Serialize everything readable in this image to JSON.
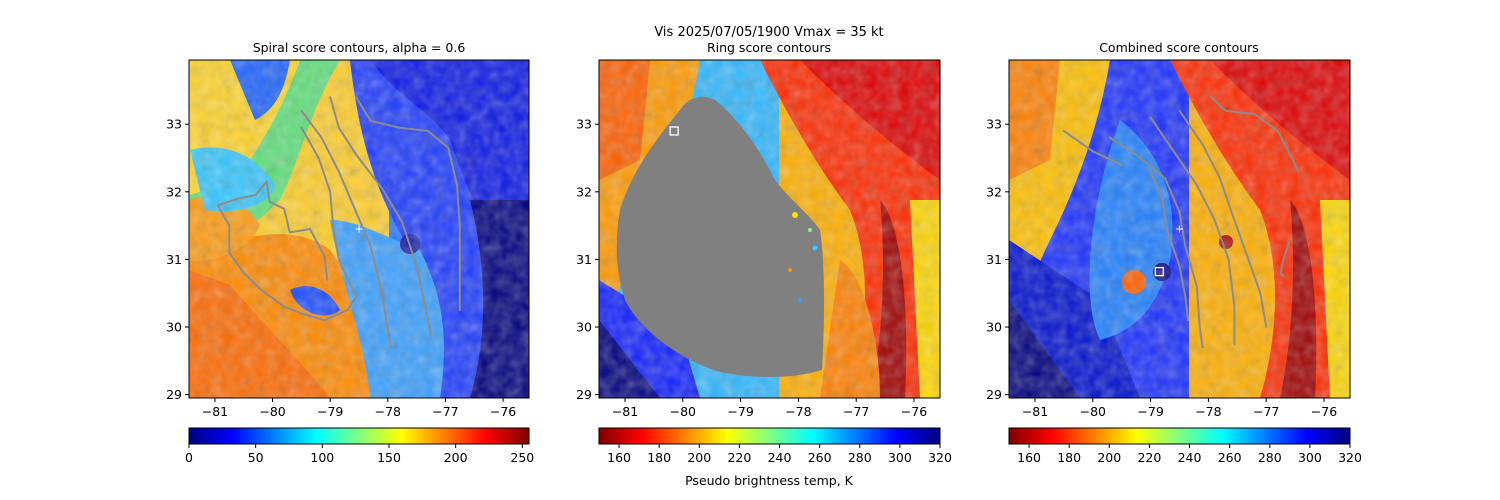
{
  "figure": {
    "suptitle": "Vis  2025/07/05/1900    Vmax = 35 kt",
    "colorbar_label": "Pseudo brightness temp, K"
  },
  "colors": {
    "contour": "#8c8c8c",
    "mask": "#808080",
    "marker": "#ffffff"
  },
  "chart_data": [
    {
      "type": "heatmap",
      "title": "Spiral score contours, alpha =  0.6",
      "xlim": [
        -81.45,
        -75.55
      ],
      "ylim": [
        28.95,
        33.95
      ],
      "xticks": [
        -81,
        -80,
        -79,
        -78,
        -77,
        -76
      ],
      "yticks": [
        29,
        30,
        31,
        32,
        33
      ],
      "colormap": "jet",
      "colorbar": {
        "ticks": [
          0,
          50,
          100,
          150,
          200,
          250
        ],
        "range": [
          0,
          255
        ]
      },
      "center_marker": {
        "lon": -78.5,
        "lat": 31.45,
        "symbol": "+"
      },
      "contours": [
        [
          [
            -78.55,
            33.4
          ],
          [
            -78.3,
            33.05
          ],
          [
            -77.8,
            32.95
          ],
          [
            -77.3,
            32.9
          ],
          [
            -76.95,
            32.65
          ],
          [
            -76.8,
            32.1
          ],
          [
            -76.75,
            31.5
          ],
          [
            -76.75,
            30.8
          ],
          [
            -76.75,
            30.25
          ]
        ],
        [
          [
            -79.0,
            33.4
          ],
          [
            -78.85,
            32.95
          ],
          [
            -78.55,
            32.55
          ],
          [
            -78.1,
            32.05
          ],
          [
            -77.75,
            31.55
          ],
          [
            -77.5,
            30.9
          ],
          [
            -77.35,
            30.3
          ],
          [
            -77.25,
            29.9
          ]
        ],
        [
          [
            -79.5,
            33.2
          ],
          [
            -79.15,
            32.8
          ],
          [
            -78.85,
            32.3
          ],
          [
            -78.6,
            31.8
          ],
          [
            -78.3,
            31.2
          ],
          [
            -78.1,
            30.5
          ],
          [
            -77.95,
            29.7
          ]
        ],
        [
          [
            -79.5,
            32.95
          ],
          [
            -79.2,
            32.5
          ],
          [
            -79.0,
            32.0
          ],
          [
            -78.95,
            31.5
          ],
          [
            -78.85,
            31.0
          ],
          [
            -78.55,
            30.45
          ],
          [
            -78.7,
            30.25
          ],
          [
            -79.1,
            30.1
          ],
          [
            -79.5,
            30.2
          ],
          [
            -79.8,
            30.3
          ],
          [
            -80.2,
            30.55
          ],
          [
            -80.5,
            30.8
          ],
          [
            -80.75,
            31.1
          ],
          [
            -80.75,
            31.5
          ],
          [
            -80.95,
            31.8
          ],
          [
            -80.6,
            31.9
          ],
          [
            -80.3,
            31.95
          ],
          [
            -80.1,
            32.15
          ],
          [
            -80.05,
            31.85
          ],
          [
            -79.8,
            31.75
          ],
          [
            -79.7,
            31.4
          ],
          [
            -79.35,
            31.45
          ],
          [
            -79.1,
            31.05
          ],
          [
            -79.05,
            30.7
          ]
        ]
      ]
    },
    {
      "type": "heatmap",
      "title": "Ring score contours",
      "xlim": [
        -81.45,
        -75.55
      ],
      "ylim": [
        28.95,
        33.95
      ],
      "xticks": [
        -81,
        -80,
        -79,
        -78,
        -77,
        -76
      ],
      "yticks": [
        29,
        30,
        31,
        32,
        33
      ],
      "colormap": "jet_r",
      "colorbar": {
        "ticks": [
          160,
          180,
          200,
          220,
          240,
          260,
          280,
          300,
          320
        ],
        "range": [
          150,
          320
        ]
      },
      "center_marker": {
        "lon": -80.15,
        "lat": 32.9,
        "symbol": "square"
      },
      "contours": []
    },
    {
      "type": "heatmap",
      "title": "Combined score contours",
      "xlim": [
        -81.45,
        -75.55
      ],
      "ylim": [
        28.95,
        33.95
      ],
      "xticks": [
        -81,
        -80,
        -79,
        -78,
        -77,
        -76
      ],
      "yticks": [
        29,
        30,
        31,
        32,
        33
      ],
      "colormap": "jet_r",
      "colorbar": {
        "ticks": [
          160,
          180,
          200,
          220,
          240,
          260,
          280,
          300,
          320
        ],
        "range": [
          150,
          320
        ]
      },
      "center_marker": {
        "lon": -78.85,
        "lat": 30.82,
        "symbol": "square"
      },
      "cross_marker": {
        "lon": -78.5,
        "lat": 31.45,
        "symbol": "+"
      },
      "contours": [
        [
          [
            -77.95,
            33.4
          ],
          [
            -77.7,
            33.2
          ],
          [
            -77.2,
            33.15
          ],
          [
            -76.8,
            32.9
          ],
          [
            -76.55,
            32.5
          ],
          [
            -76.45,
            32.3
          ]
        ],
        [
          [
            -78.5,
            33.2
          ],
          [
            -78.1,
            32.7
          ],
          [
            -77.8,
            32.2
          ],
          [
            -77.6,
            31.7
          ],
          [
            -77.35,
            31.1
          ],
          [
            -77.1,
            30.5
          ],
          [
            -77.0,
            30.0
          ]
        ],
        [
          [
            -79.0,
            33.1
          ],
          [
            -78.6,
            32.6
          ],
          [
            -78.2,
            32.1
          ],
          [
            -77.9,
            31.6
          ],
          [
            -77.65,
            31.0
          ],
          [
            -77.55,
            30.3
          ],
          [
            -77.55,
            29.75
          ]
        ],
        [
          [
            -79.7,
            32.8
          ],
          [
            -79.25,
            32.55
          ],
          [
            -78.75,
            32.2
          ],
          [
            -78.5,
            31.7
          ],
          [
            -78.4,
            31.2
          ],
          [
            -78.2,
            30.6
          ],
          [
            -78.15,
            30.0
          ],
          [
            -78.1,
            29.7
          ]
        ],
        [
          [
            -79.0,
            32.3
          ],
          [
            -78.8,
            31.9
          ],
          [
            -78.7,
            31.4
          ],
          [
            -78.5,
            30.9
          ],
          [
            -78.4,
            30.45
          ],
          [
            -78.35,
            30.1
          ]
        ],
        [
          [
            -76.6,
            31.25
          ],
          [
            -76.7,
            31.0
          ],
          [
            -76.75,
            30.8
          ],
          [
            -76.7,
            30.75
          ]
        ],
        [
          [
            -80.5,
            32.9
          ],
          [
            -80.0,
            32.6
          ],
          [
            -79.5,
            32.4
          ]
        ]
      ]
    }
  ]
}
